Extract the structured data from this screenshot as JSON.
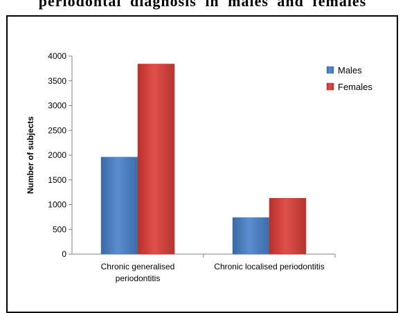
{
  "header": {
    "title": "periodontal diagnosis in males and females"
  },
  "chart_data": {
    "type": "bar",
    "title": "",
    "xlabel": "",
    "ylabel": "Number of subjects",
    "ylim": [
      0,
      4000
    ],
    "yticks": [
      0,
      500,
      1000,
      1500,
      2000,
      2500,
      3000,
      3500,
      4000
    ],
    "categories": [
      [
        "Chronic generalised",
        "periodontitis"
      ],
      [
        "Chronic localised periodontitis"
      ]
    ],
    "series": [
      {
        "name": "Males",
        "color": "#4a7ebb",
        "values": [
          1960,
          740
        ]
      },
      {
        "name": "Females",
        "color": "#c0392b",
        "values": [
          3840,
          1130
        ]
      }
    ],
    "legend": "right",
    "grid": false
  }
}
